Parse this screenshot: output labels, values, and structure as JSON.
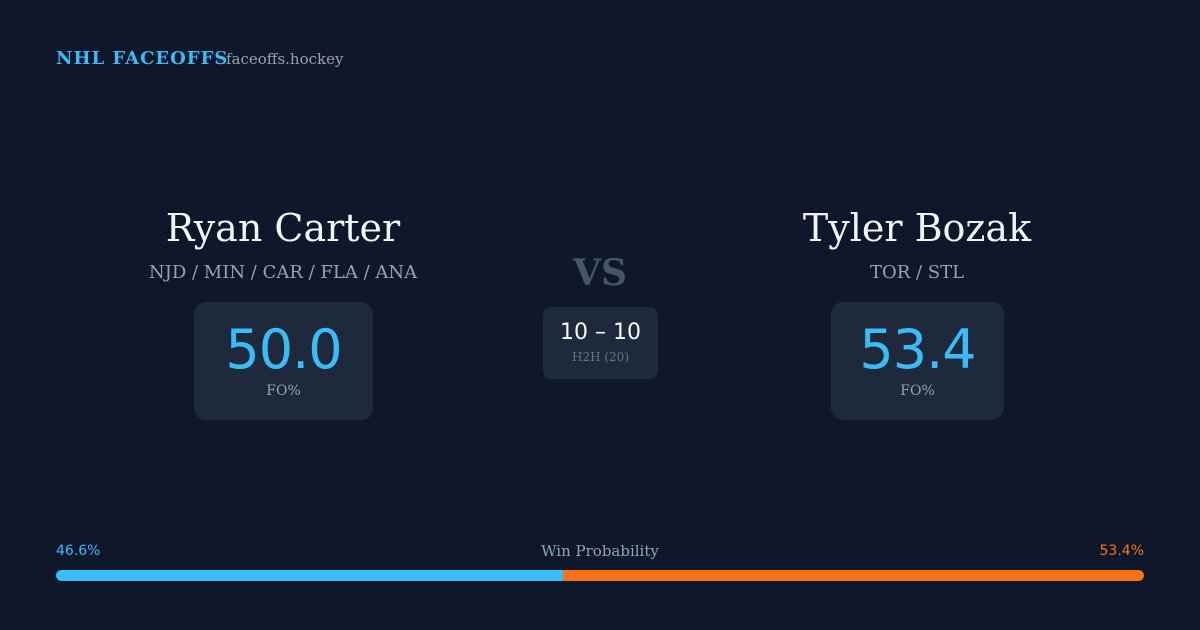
{
  "header": {
    "title": "NHL FACEOFFS",
    "site": "faceoffs.hockey"
  },
  "players": [
    {
      "name": "Ryan Carter",
      "teams": "NJD / MIN / CAR / FLA / ANA",
      "fo_pct": "50.0",
      "fo_label": "FO%"
    },
    {
      "name": "Tyler Bozak",
      "teams": "TOR / STL",
      "fo_pct": "53.4",
      "fo_label": "FO%"
    }
  ],
  "versus": {
    "label": "VS",
    "score": "10 – 10",
    "h2h": "H2H (20)"
  },
  "win_probability": {
    "label": "Win Probability",
    "left": {
      "value": 46.6,
      "label": "46.6%"
    },
    "right": {
      "value": 53.4,
      "label": "53.4%"
    }
  }
}
